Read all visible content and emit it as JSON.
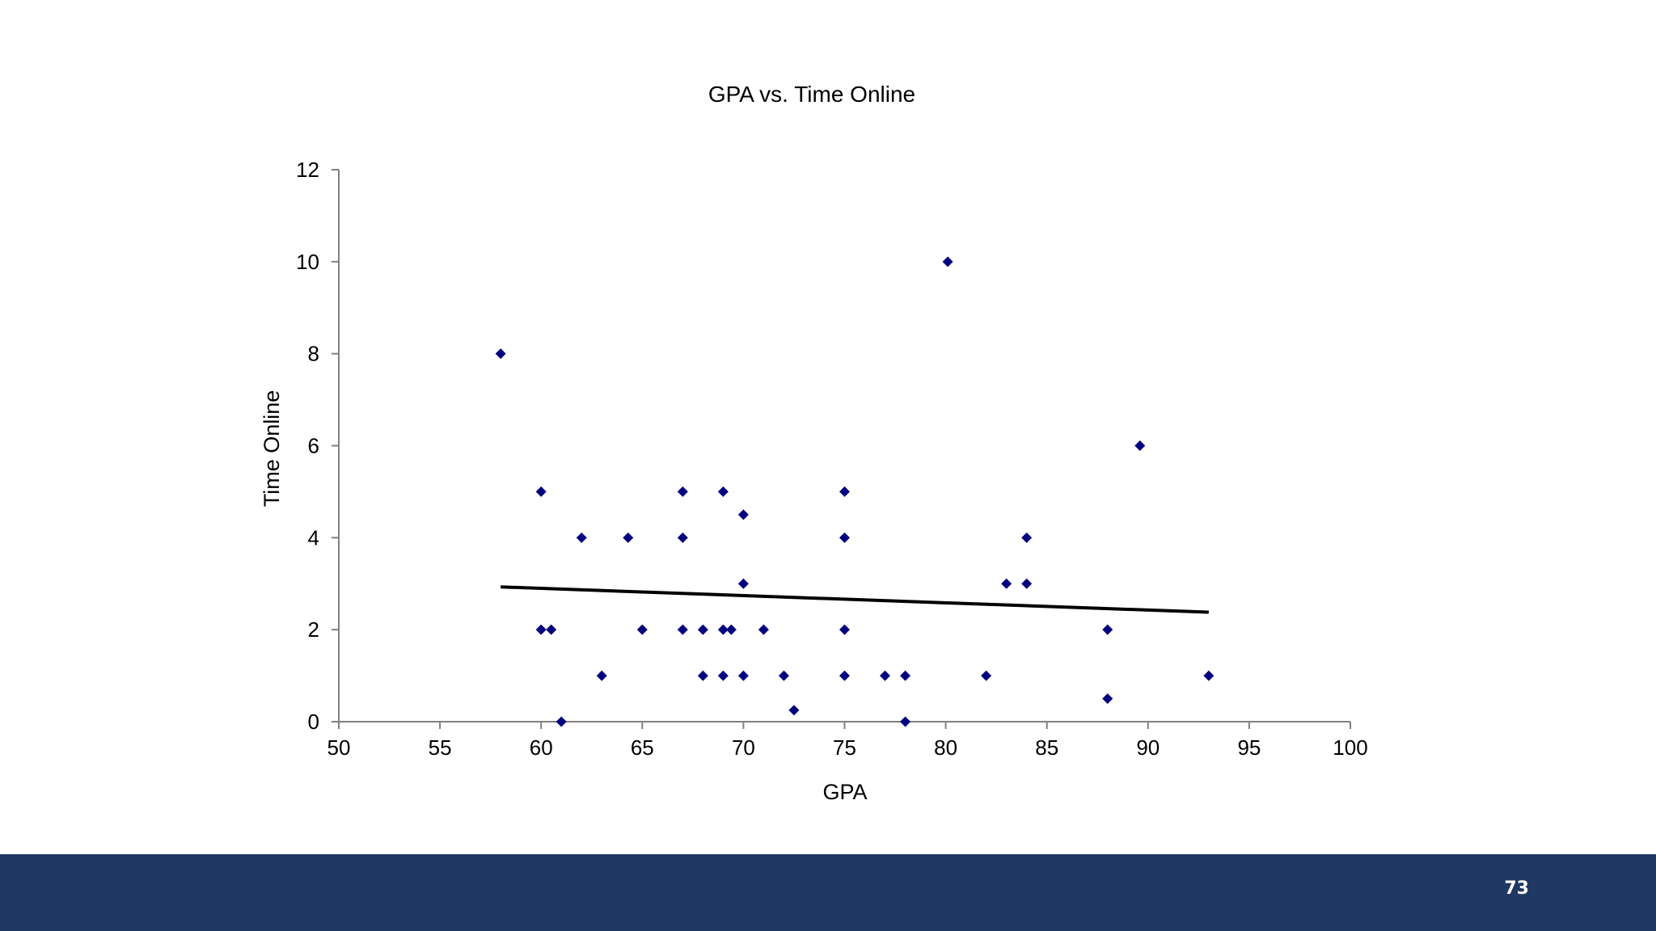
{
  "slide": {
    "page_number": "73",
    "footer_color": "#1f3864",
    "marker_color": "#00007f",
    "trendline_color": "#000000"
  },
  "chart_data": {
    "type": "scatter",
    "title": "GPA vs. Time Online",
    "xlabel": "GPA",
    "ylabel": "Time Online",
    "xlim": [
      50,
      100
    ],
    "ylim": [
      0,
      12
    ],
    "x_ticks": [
      50,
      55,
      60,
      65,
      70,
      75,
      80,
      85,
      90,
      95,
      100
    ],
    "y_ticks": [
      0,
      2,
      4,
      6,
      8,
      10,
      12
    ],
    "grid": false,
    "legend": "none",
    "marker": "diamond",
    "series": [
      {
        "points": [
          {
            "x": 58,
            "y": 8
          },
          {
            "x": 60,
            "y": 5
          },
          {
            "x": 60,
            "y": 2
          },
          {
            "x": 60.5,
            "y": 2
          },
          {
            "x": 61,
            "y": 0
          },
          {
            "x": 62,
            "y": 4
          },
          {
            "x": 63,
            "y": 1
          },
          {
            "x": 64.3,
            "y": 4
          },
          {
            "x": 65,
            "y": 2
          },
          {
            "x": 67,
            "y": 5
          },
          {
            "x": 67,
            "y": 4
          },
          {
            "x": 67,
            "y": 2
          },
          {
            "x": 68,
            "y": 2
          },
          {
            "x": 68,
            "y": 1
          },
          {
            "x": 69,
            "y": 5
          },
          {
            "x": 69,
            "y": 2
          },
          {
            "x": 69.4,
            "y": 2
          },
          {
            "x": 69,
            "y": 1
          },
          {
            "x": 70,
            "y": 4.5
          },
          {
            "x": 70,
            "y": 3
          },
          {
            "x": 70,
            "y": 1
          },
          {
            "x": 71,
            "y": 2
          },
          {
            "x": 72,
            "y": 1
          },
          {
            "x": 72.5,
            "y": 0.25
          },
          {
            "x": 75,
            "y": 5
          },
          {
            "x": 75,
            "y": 4
          },
          {
            "x": 75,
            "y": 2
          },
          {
            "x": 75,
            "y": 1
          },
          {
            "x": 77,
            "y": 1
          },
          {
            "x": 78,
            "y": 1
          },
          {
            "x": 78,
            "y": 0
          },
          {
            "x": 80.1,
            "y": 10
          },
          {
            "x": 82,
            "y": 1
          },
          {
            "x": 83,
            "y": 3
          },
          {
            "x": 84,
            "y": 4
          },
          {
            "x": 84,
            "y": 3
          },
          {
            "x": 88,
            "y": 2
          },
          {
            "x": 88,
            "y": 0.5
          },
          {
            "x": 89.6,
            "y": 6
          },
          {
            "x": 93,
            "y": 1
          }
        ]
      }
    ],
    "trendline": {
      "x": [
        58,
        93
      ],
      "y": [
        2.93,
        2.38
      ]
    }
  }
}
